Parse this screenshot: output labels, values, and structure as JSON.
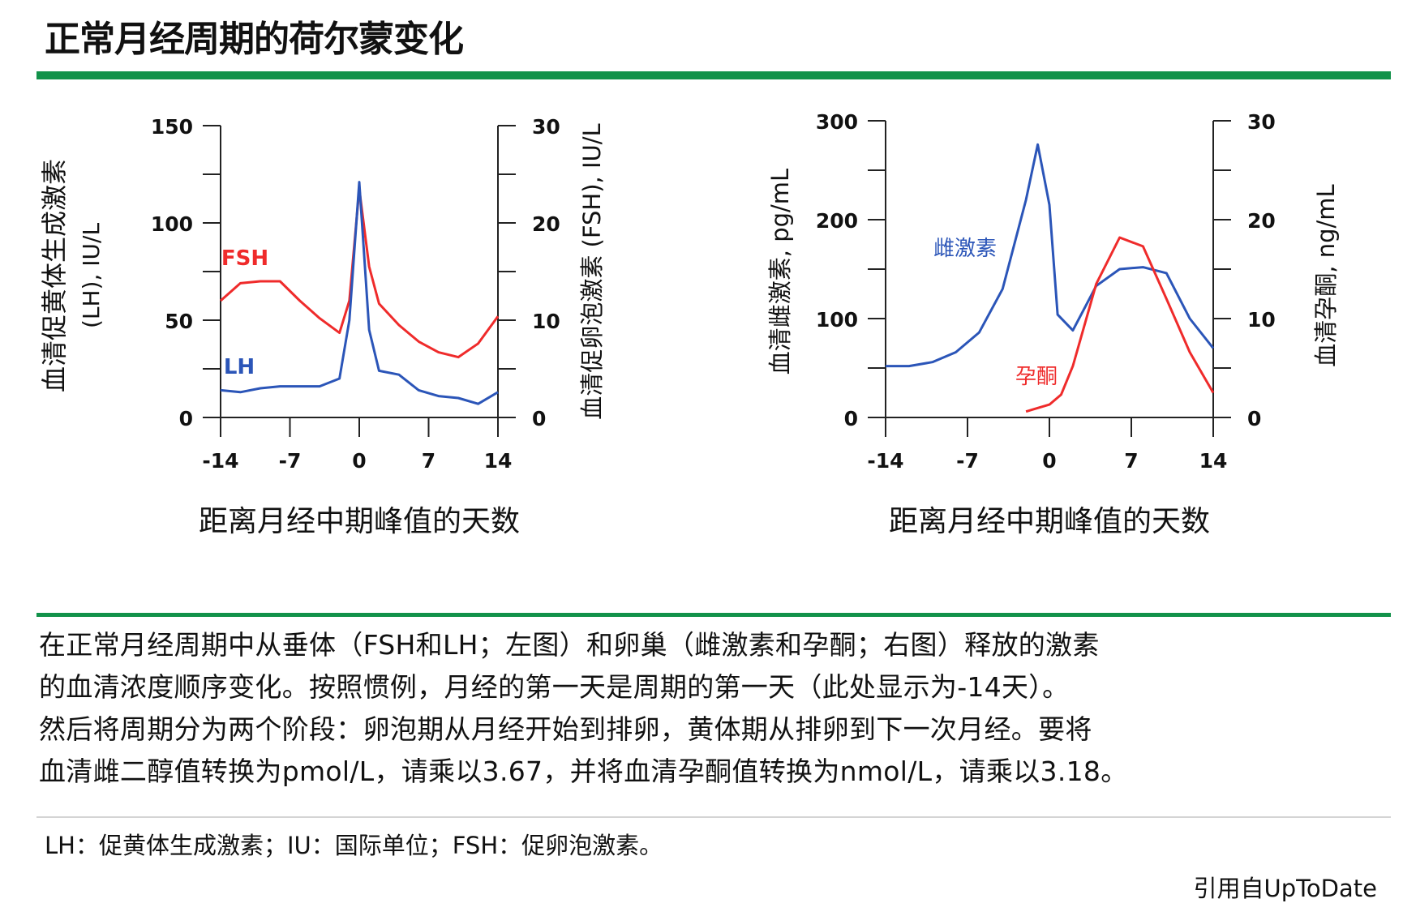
{
  "page": {
    "title": "正常月经周期的荷尔蒙变化",
    "caption_lines": [
      "在正常月经周期中从垂体（FSH和LH；左图）和卵巢（雌激素和孕酮；右图）释放的激素",
      "的血清浓度顺序变化。按照惯例，月经的第一天是周期的第一天（此处显示为-14天）。",
      "然后将周期分为两个阶段：卵泡期从月经开始到排卵，黄体期从排卵到下一次月经。要将",
      "血清雌二醇值转换为pmol/L，请乘以3.67，并将血清孕酮值转换为nmol/L，请乘以3.18。"
    ],
    "abbreviations": "LH：促黄体生成激素；IU：国际单位；FSH：促卵泡激素。",
    "source": "引用自UpToDate",
    "colors": {
      "accent_green": "#12924a",
      "red_series": "#ef2b2b",
      "blue_series": "#2b55b8"
    }
  },
  "chart_data": [
    {
      "type": "line",
      "xlabel": "距离月经中期峰值的天数",
      "ylabel_left_line1": "血清促黄体生成激素",
      "ylabel_left_line2": "(LH), IU/L",
      "ylabel_right": "血清促卵泡激素 (FSH), IU/L",
      "x_ticks": [
        -14,
        -7,
        0,
        7,
        14
      ],
      "xlim": [
        -14,
        14
      ],
      "ylim_left": [
        0,
        150
      ],
      "y_ticks_left": [
        0,
        50,
        100,
        150
      ],
      "ylim_right": [
        0,
        30
      ],
      "y_ticks_right": [
        0,
        10,
        20,
        30
      ],
      "series": [
        {
          "name": "FSH",
          "axis": "right",
          "color": "#ef2b2b",
          "points": [
            [
              -14,
              12
            ],
            [
              -12,
              13.8
            ],
            [
              -10,
              14
            ],
            [
              -8,
              14
            ],
            [
              -6,
              12
            ],
            [
              -4,
              10.2
            ],
            [
              -2,
              8.7
            ],
            [
              -1,
              12
            ],
            [
              0,
              23.5
            ],
            [
              1,
              15.5
            ],
            [
              2,
              11.7
            ],
            [
              4,
              9.5
            ],
            [
              6,
              7.8
            ],
            [
              8,
              6.7
            ],
            [
              10,
              6.2
            ],
            [
              12,
              7.6
            ],
            [
              14,
              10.4
            ]
          ]
        },
        {
          "name": "LH",
          "axis": "left",
          "color": "#2b55b8",
          "points": [
            [
              -14,
              14
            ],
            [
              -12,
              13
            ],
            [
              -10,
              15
            ],
            [
              -8,
              16
            ],
            [
              -6,
              16
            ],
            [
              -4,
              16
            ],
            [
              -2,
              20
            ],
            [
              -1,
              50
            ],
            [
              0,
              121
            ],
            [
              1,
              45
            ],
            [
              2,
              24
            ],
            [
              4,
              22
            ],
            [
              6,
              14
            ],
            [
              8,
              11
            ],
            [
              10,
              10
            ],
            [
              12,
              7
            ],
            [
              14,
              13
            ]
          ]
        }
      ]
    },
    {
      "type": "line",
      "xlabel": "距离月经中期峰值的天数",
      "ylabel_left": "血清雌激素, pg/mL",
      "ylabel_right": "血清孕酮, ng/mL",
      "x_ticks": [
        -14,
        -7,
        0,
        7,
        14
      ],
      "xlim": [
        -14,
        14
      ],
      "ylim_left": [
        0,
        300
      ],
      "y_ticks_left": [
        0,
        100,
        200,
        300
      ],
      "ylim_right": [
        0,
        30
      ],
      "y_ticks_right": [
        0,
        10,
        20,
        30
      ],
      "series": [
        {
          "name": "雌激素",
          "axis": "left",
          "color": "#2b55b8",
          "points": [
            [
              -14,
              52
            ],
            [
              -12,
              52
            ],
            [
              -10,
              56
            ],
            [
              -8,
              66
            ],
            [
              -6,
              86
            ],
            [
              -4,
              130
            ],
            [
              -2,
              220
            ],
            [
              -1,
              276
            ],
            [
              0,
              215
            ],
            [
              0.7,
              104
            ],
            [
              2,
              88
            ],
            [
              4,
              133
            ],
            [
              6,
              150
            ],
            [
              8,
              152
            ],
            [
              10,
              146
            ],
            [
              12,
              100
            ],
            [
              14,
              70
            ]
          ]
        },
        {
          "name": "孕酮",
          "axis": "right",
          "color": "#ef2b2b",
          "points": [
            [
              -2,
              0.6
            ],
            [
              0,
              1.3
            ],
            [
              1,
              2.3
            ],
            [
              2,
              5.2
            ],
            [
              4,
              13.5
            ],
            [
              6,
              18.2
            ],
            [
              8,
              17.3
            ],
            [
              10,
              12
            ],
            [
              12,
              6.6
            ],
            [
              14,
              2.5
            ]
          ]
        }
      ]
    }
  ]
}
